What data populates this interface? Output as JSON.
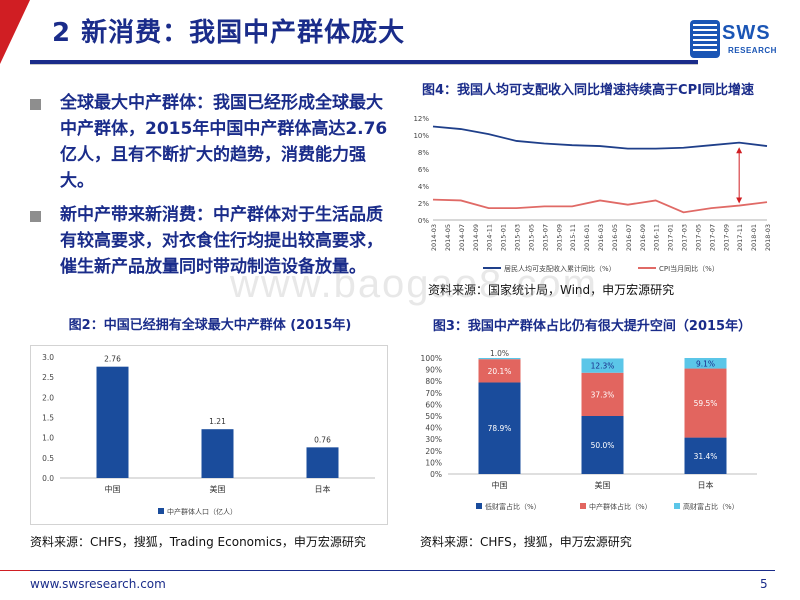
{
  "header": {
    "title": "2 新消费：我国中产群体庞大",
    "logo_text": "SWS",
    "logo_subtext": "RESEARCH"
  },
  "bullets": [
    {
      "text": "全球最大中产群体：我国已经形成全球最大中产群体，2015年中国中产群体高达2.76亿人，且有不断扩大的趋势，消费能力强大。"
    },
    {
      "text": "新中产带来新消费：中产群体对于生活品质有较高要求，对衣食住行均提出较高要求，催生新产品放量同时带动制造设备放量。"
    }
  ],
  "watermark": "www.baogao8.com",
  "footer": {
    "url": "www.swsresearch.com",
    "page": "5"
  },
  "figures": {
    "fig4": {
      "title": "图4：我国人均可支配收入同比增速持续高于CPI同比增速",
      "source": "资料来源：国家统计局，Wind，申万宏源研究"
    },
    "fig2": {
      "title": "图2：中国已经拥有全球最大中产群体 (2015年)",
      "source": "资料来源：CHFS，搜狐，Trading Economics，申万宏源研究"
    },
    "fig3": {
      "title": "图3：我国中产群体占比仍有很大提升空间（2015年）",
      "source": "资料来源：CHFS，搜狐，申万宏源研究"
    }
  },
  "colors": {
    "brand_blue": "#1a2c8a",
    "accent_red": "#d01e23",
    "income_line": "#1f3f8a",
    "cpi_line": "#e06a66",
    "bar_blue": "#1a4c9c",
    "mid_red": "#e2655f",
    "high_cyan": "#5bc6e8"
  },
  "chart_data": [
    {
      "id": "fig4",
      "type": "line",
      "x": [
        "2014-03",
        "2014-05",
        "2014-07",
        "2014-09",
        "2014-11",
        "2015-01",
        "2015-03",
        "2015-05",
        "2015-07",
        "2015-09",
        "2015-11",
        "2016-01",
        "2016-03",
        "2016-05",
        "2016-07",
        "2016-09",
        "2016-11",
        "2017-01",
        "2017-03",
        "2017-05",
        "2017-07",
        "2017-09",
        "2017-11",
        "2018-01",
        "2018-03"
      ],
      "tick_labels": [
        "2014-03",
        "2014-05",
        "2014-07",
        "2014-09",
        "2014-11",
        "2015-01",
        "2015-03",
        "2015-05",
        "2015-07",
        "2015-09",
        "2015-11",
        "2016-01",
        "2016-03",
        "2016-05",
        "2016-07",
        "2016-09",
        "2016-11",
        "2017-01",
        "2017-03",
        "2017-05",
        "2017-07",
        "2017-09",
        "2017-11",
        "2018-01",
        "2018-03"
      ],
      "series": [
        {
          "name": "居民人均可支配收入累计同比（%）",
          "values": [
            11.0,
            null,
            10.7,
            null,
            10.1,
            null,
            9.3,
            null,
            9.0,
            null,
            8.8,
            null,
            8.7,
            null,
            8.4,
            null,
            8.4,
            null,
            8.5,
            null,
            8.8,
            null,
            9.1,
            null,
            8.7
          ]
        },
        {
          "name": "CPI当月同比（%）",
          "values": [
            2.4,
            null,
            2.3,
            null,
            1.4,
            null,
            1.4,
            null,
            1.6,
            null,
            1.6,
            null,
            2.3,
            null,
            1.8,
            null,
            2.3,
            null,
            0.9,
            null,
            1.4,
            null,
            1.7,
            null,
            2.1
          ]
        }
      ],
      "yticks": [
        "0%",
        "2%",
        "4%",
        "6%",
        "8%",
        "10%",
        "12%"
      ],
      "ylim": [
        0,
        12
      ],
      "legend": "bottom",
      "annotation": "double-arrow"
    },
    {
      "id": "fig2",
      "type": "bar",
      "categories": [
        "中国",
        "美国",
        "日本"
      ],
      "values": [
        2.76,
        1.21,
        0.76
      ],
      "value_labels": [
        "2.76",
        "1.21",
        "0.76"
      ],
      "yticks": [
        "0.0",
        "0.5",
        "1.0",
        "1.5",
        "2.0",
        "2.5",
        "3.0"
      ],
      "ylim": [
        0,
        3.0
      ],
      "series_name": "中产群体人口（亿人）",
      "legend": "bottom"
    },
    {
      "id": "fig3",
      "type": "bar",
      "stacked": true,
      "categories": [
        "中国",
        "美国",
        "日本"
      ],
      "series": [
        {
          "name": "低财富占比（%）",
          "values": [
            78.9,
            50.0,
            31.4
          ],
          "labels": [
            "78.9%",
            "50.0%",
            "31.4%"
          ]
        },
        {
          "name": "中产群体占比（%）",
          "values": [
            20.1,
            37.3,
            59.5
          ],
          "labels": [
            "20.1%",
            "37.3%",
            "59.5%"
          ]
        },
        {
          "name": "高财富占比（%）",
          "values": [
            1.0,
            12.3,
            9.1
          ],
          "labels": [
            "1.0%",
            "12.3%",
            "9.1%"
          ]
        }
      ],
      "yticks": [
        "0%",
        "10%",
        "20%",
        "30%",
        "40%",
        "50%",
        "60%",
        "70%",
        "80%",
        "90%",
        "100%"
      ],
      "ylim": [
        0,
        100
      ],
      "legend": "bottom"
    }
  ]
}
